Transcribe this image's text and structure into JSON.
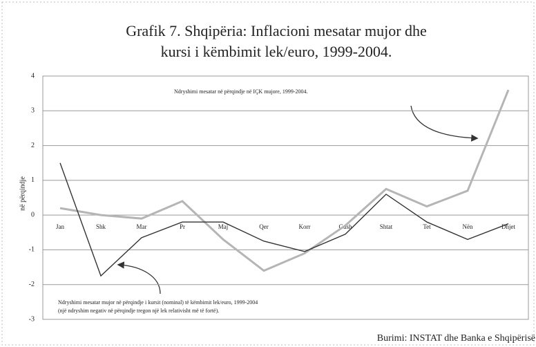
{
  "chart_data": {
    "type": "line",
    "title": "Grafik 7. Shqipëria: Inflacioni mesatar mujor dhe",
    "subtitle": "kursi i këmbimit lek/euro, 1999-2004.",
    "y_label": "në përqindje",
    "categories": [
      "Jan",
      "Shk",
      "Mar",
      "Pr",
      "Maj",
      "Qer",
      "Korr",
      "Gush",
      "Shtat",
      "Tet",
      "Nën",
      "Dhjet"
    ],
    "series": [
      {
        "name": "Ndryshimi mesatar në përqindje në IÇK mujore, 1999-2004.",
        "color": "#b5b5b5",
        "values": [
          0.2,
          0.0,
          -0.1,
          0.4,
          -0.7,
          -1.6,
          -1.1,
          -0.3,
          0.75,
          0.25,
          0.7,
          3.6
        ]
      },
      {
        "name": "Ndryshimi mesatar mujor në përqindje i kursit (nominal) të këmbimit lek/euro, 1999-2004",
        "color": "#333333",
        "values": [
          1.5,
          -1.75,
          -0.65,
          -0.2,
          -0.2,
          -0.75,
          -1.05,
          -0.55,
          0.6,
          -0.2,
          -0.7,
          -0.25
        ]
      }
    ],
    "note": "(një ndryshim negativ në përqindje tregon një lek relativisht më të fortë).",
    "source": "Burimi: INSTAT dhe Banka e Shqipërisë",
    "ylim": [
      -3,
      4
    ],
    "yticks": [
      -3,
      -2,
      -1,
      0,
      1,
      2,
      3,
      4
    ],
    "grid": true
  }
}
